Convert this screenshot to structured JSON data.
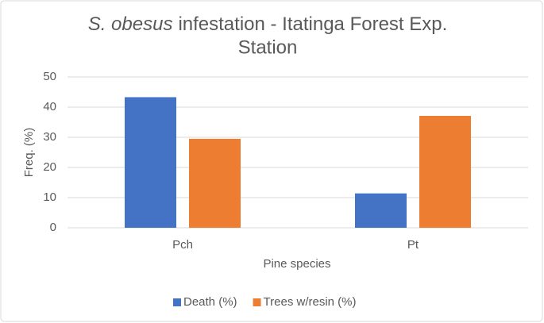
{
  "chart_data": {
    "type": "bar",
    "title_parts": [
      "S. obesus",
      "infestation - Itatinga Forest Exp.",
      "Station"
    ],
    "xlabel": "Pine species",
    "ylabel": "Freq. (%)",
    "categories": [
      "Pch",
      "Pt"
    ],
    "series": [
      {
        "name": "Death (%)",
        "color": "#4472c4",
        "values": [
          43.3,
          11.4
        ]
      },
      {
        "name": "Trees w/resin (%)",
        "color": "#ed7d31",
        "values": [
          29.5,
          37.1
        ]
      }
    ],
    "ylim": [
      0,
      50
    ],
    "yticks": [
      0,
      10,
      20,
      30,
      40,
      50
    ],
    "grid": true,
    "legend": "bottom"
  }
}
